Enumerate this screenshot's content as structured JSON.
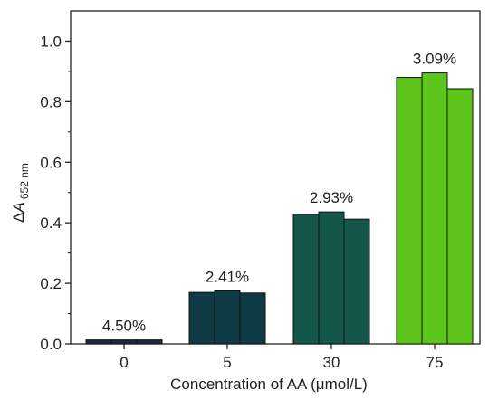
{
  "chart_data": {
    "type": "bar",
    "xlabel": "Concentration of AA (μmol/L)",
    "ylabel": {
      "prefix": "Δ",
      "main": "A",
      "sub": "652 nm"
    },
    "ylim": [
      0,
      1.1
    ],
    "yticks": [
      "0.0",
      "0.2",
      "0.4",
      "0.6",
      "0.8",
      "1.0"
    ],
    "ytick_values": [
      0,
      0.2,
      0.4,
      0.6,
      0.8,
      1.0
    ],
    "grid": false,
    "categories": [
      "0",
      "5",
      "30",
      "75"
    ],
    "groups": [
      {
        "category": "0",
        "values": [
          0.013,
          0.013,
          0.013
        ],
        "label": "4.50%",
        "color": "#1a2a3a"
      },
      {
        "category": "5",
        "values": [
          0.17,
          0.175,
          0.168
        ],
        "label": "2.41%",
        "color": "#0f3a45"
      },
      {
        "category": "30",
        "values": [
          0.428,
          0.436,
          0.412
        ],
        "label": "2.93%",
        "color": "#14574a"
      },
      {
        "category": "75",
        "values": [
          0.88,
          0.895,
          0.843
        ],
        "label": "3.09%",
        "color": "#5cc41a"
      }
    ]
  }
}
